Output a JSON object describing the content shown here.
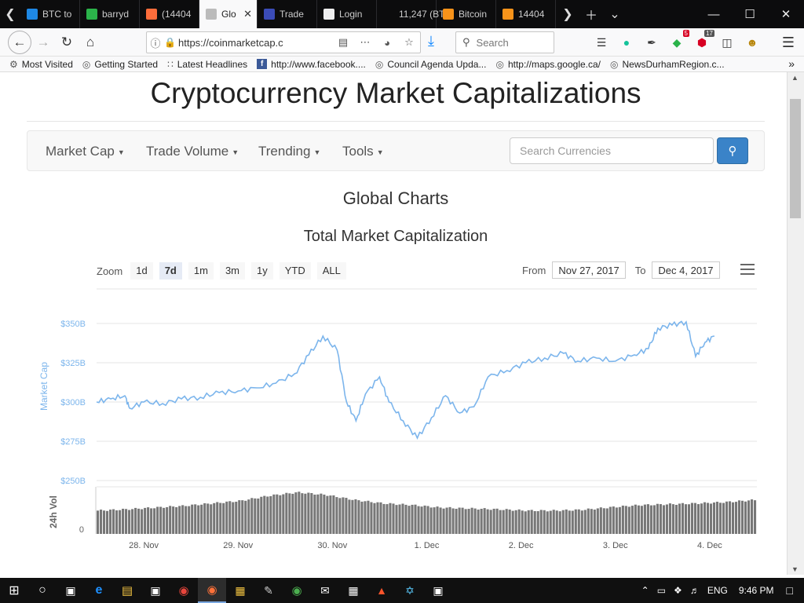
{
  "browser": {
    "tabs": [
      {
        "label": "BTC to",
        "color": "#1e88e5"
      },
      {
        "label": "barryd",
        "color": "#2bb34a"
      },
      {
        "label": "(14404",
        "color": "#ff6d3b"
      },
      {
        "label": "Glo",
        "color": "#bbbbbb",
        "active": true
      },
      {
        "label": "Trade",
        "color": "#3b4cb8"
      },
      {
        "label": "Login",
        "color": "#eeeeee"
      },
      {
        "label": "11,247 (BT",
        "color": "#0c0c0d"
      },
      {
        "label": "Bitcoin",
        "color": "#f7931a"
      },
      {
        "label": "14404",
        "color": "#f7931a"
      }
    ],
    "url": "https://coinmarketcap.c",
    "search_placeholder": "Search",
    "badges": {
      "green": "5",
      "grey": "17"
    }
  },
  "bookmarks": [
    {
      "label": "Most Visited",
      "icon": "gear-icon"
    },
    {
      "label": "Getting Started",
      "icon": "globe-icon"
    },
    {
      "label": "Latest Headlines",
      "icon": "rss-icon"
    },
    {
      "label": "http://www.facebook....",
      "icon": "facebook-icon"
    },
    {
      "label": "Council Agenda Upda...",
      "icon": "globe-icon"
    },
    {
      "label": "http://maps.google.ca/",
      "icon": "globe-icon"
    },
    {
      "label": "NewsDurhamRegion.c...",
      "icon": "globe-icon"
    }
  ],
  "page": {
    "site_title": "Cryptocurrency Market Capitalizations",
    "nav": [
      "Market Cap",
      "Trade Volume",
      "Trending",
      "Tools"
    ],
    "search_placeholder": "Search Currencies",
    "global_heading": "Global Charts",
    "chart_heading": "Total Market Capitalization",
    "zoom_label": "Zoom",
    "zoom_options": [
      "1d",
      "7d",
      "1m",
      "3m",
      "1y",
      "YTD",
      "ALL"
    ],
    "zoom_selected": "7d",
    "from_label": "From",
    "from_value": "Nov 27, 2017",
    "to_label": "To",
    "to_value": "Dec 4, 2017"
  },
  "chart_data": {
    "type": "line",
    "title": "Total Market Capitalization",
    "ylabel": "Market Cap",
    "ylim": [
      250,
      350
    ],
    "y_ticks": [
      "$350B",
      "$325B",
      "$300B",
      "$275B",
      "$250B"
    ],
    "x_ticks": [
      "28. Nov",
      "29. Nov",
      "30. Nov",
      "1. Dec",
      "2. Dec",
      "3. Dec",
      "4. Dec"
    ],
    "x_tick_positions": [
      0.5,
      1.5,
      2.5,
      3.5,
      4.5,
      5.5,
      6.5
    ],
    "series": [
      {
        "values_unit": "billion USD",
        "points": [
          [
            0.0,
            300
          ],
          [
            0.15,
            302
          ],
          [
            0.3,
            304
          ],
          [
            0.35,
            296
          ],
          [
            0.5,
            300
          ],
          [
            0.7,
            299
          ],
          [
            0.9,
            302
          ],
          [
            1.1,
            303
          ],
          [
            1.3,
            306
          ],
          [
            1.5,
            307
          ],
          [
            1.7,
            309
          ],
          [
            1.9,
            312
          ],
          [
            2.1,
            318
          ],
          [
            2.25,
            330
          ],
          [
            2.4,
            342
          ],
          [
            2.55,
            333
          ],
          [
            2.65,
            300
          ],
          [
            2.75,
            288
          ],
          [
            2.85,
            305
          ],
          [
            3.0,
            316
          ],
          [
            3.1,
            300
          ],
          [
            3.25,
            288
          ],
          [
            3.4,
            277
          ],
          [
            3.55,
            290
          ],
          [
            3.7,
            304
          ],
          [
            3.85,
            293
          ],
          [
            4.0,
            297
          ],
          [
            4.15,
            316
          ],
          [
            4.35,
            320
          ],
          [
            4.55,
            325
          ],
          [
            4.75,
            328
          ],
          [
            4.95,
            331
          ],
          [
            5.1,
            326
          ],
          [
            5.3,
            328
          ],
          [
            5.5,
            326
          ],
          [
            5.7,
            330
          ],
          [
            5.85,
            334
          ],
          [
            5.95,
            347
          ],
          [
            6.1,
            349
          ],
          [
            6.25,
            351
          ],
          [
            6.35,
            329
          ],
          [
            6.45,
            338
          ],
          [
            6.55,
            342
          ]
        ]
      }
    ],
    "volume": {
      "ylabel": "24h Vol",
      "zero_tick": "0",
      "relative_values": [
        0.55,
        0.58,
        0.62,
        0.66,
        0.72,
        0.78,
        0.9,
        0.98,
        0.92,
        0.8,
        0.72,
        0.68,
        0.62,
        0.6,
        0.58,
        0.55,
        0.55,
        0.57,
        0.63,
        0.68,
        0.7,
        0.72,
        0.75,
        0.8
      ]
    }
  }
}
